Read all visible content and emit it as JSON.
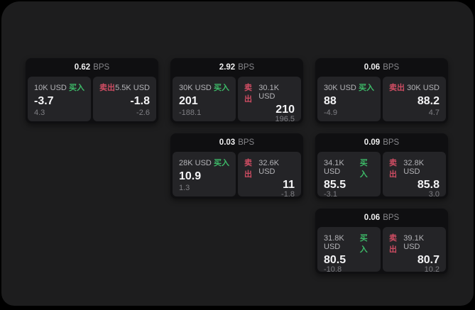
{
  "labels": {
    "bps_unit": "BPS",
    "buy": "买入",
    "sell": "卖出"
  },
  "colors": {
    "page_bg": "#1d1d1e",
    "card_bg": "#0f0f11",
    "panel_bg": "#242427",
    "buy": "#3dba68",
    "sell": "#cf4d63"
  },
  "cards": [
    {
      "bps": "0.62",
      "buy": {
        "amount": "10K USD",
        "price": "-3.7",
        "delta": "4.3"
      },
      "sell": {
        "amount": "5.5K USD",
        "price": "-1.8",
        "delta": "-2.6"
      }
    },
    {
      "bps": "2.92",
      "buy": {
        "amount": "30K USD",
        "price": "201",
        "delta": "-188.1"
      },
      "sell": {
        "amount": "30.1K USD",
        "price": "210",
        "delta": "196.5"
      }
    },
    {
      "bps": "0.06",
      "buy": {
        "amount": "30K USD",
        "price": "88",
        "delta": "-4.9"
      },
      "sell": {
        "amount": "30K USD",
        "price": "88.2",
        "delta": "4.7"
      }
    },
    {
      "bps": "0.03",
      "buy": {
        "amount": "28K USD",
        "price": "10.9",
        "delta": "1.3"
      },
      "sell": {
        "amount": "32.6K USD",
        "price": "11",
        "delta": "-1.8"
      }
    },
    {
      "bps": "0.09",
      "buy": {
        "amount": "34.1K USD",
        "price": "85.5",
        "delta": "-3.1"
      },
      "sell": {
        "amount": "32.8K USD",
        "price": "85.8",
        "delta": "3.0"
      }
    },
    {
      "bps": "0.06",
      "buy": {
        "amount": "31.8K USD",
        "price": "80.5",
        "delta": "-10.8"
      },
      "sell": {
        "amount": "39.1K USD",
        "price": "80.7",
        "delta": "10.2"
      }
    }
  ]
}
